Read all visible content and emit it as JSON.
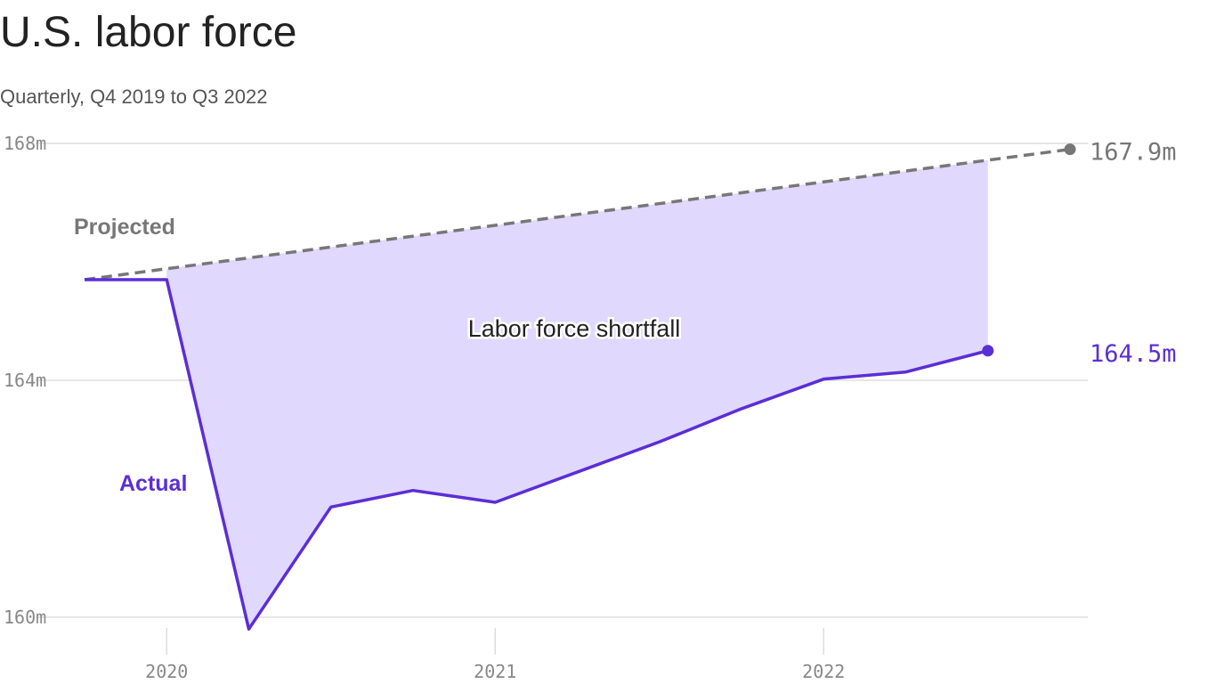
{
  "chart_data": {
    "type": "line",
    "title": "U.S. labor force",
    "subtitle": "Quarterly, Q4 2019 to Q3 2022",
    "annotation": "Labor force shortfall",
    "series": [
      {
        "name": "Projected",
        "color": "#777777",
        "dashed": true,
        "x": [
          2019.75,
          2022.75
        ],
        "values": [
          165.7,
          167.9
        ],
        "end_label": "167.9m"
      },
      {
        "name": "Actual",
        "color": "#5b2ed6",
        "dashed": false,
        "x": [
          2019.75,
          2020,
          2020.25,
          2020.5,
          2020.75,
          2021,
          2021.25,
          2021.5,
          2021.75,
          2022,
          2022.25,
          2022.5
        ],
        "values": [
          165.7,
          165.7,
          159.8,
          161.86,
          162.14,
          161.94,
          162.45,
          162.96,
          163.52,
          164.02,
          164.14,
          164.5
        ],
        "end_label": "164.5m"
      }
    ],
    "fill_color": "#e0d9fd",
    "xlim": [
      2019.75,
      2022.75
    ],
    "xticks": [
      2020,
      2021,
      2022
    ],
    "ylim": [
      160,
      168
    ],
    "yticks": [
      {
        "value": 160,
        "label": "160m"
      },
      {
        "value": 164,
        "label": "164m"
      },
      {
        "value": 168,
        "label": "168m"
      }
    ],
    "grid": true
  }
}
